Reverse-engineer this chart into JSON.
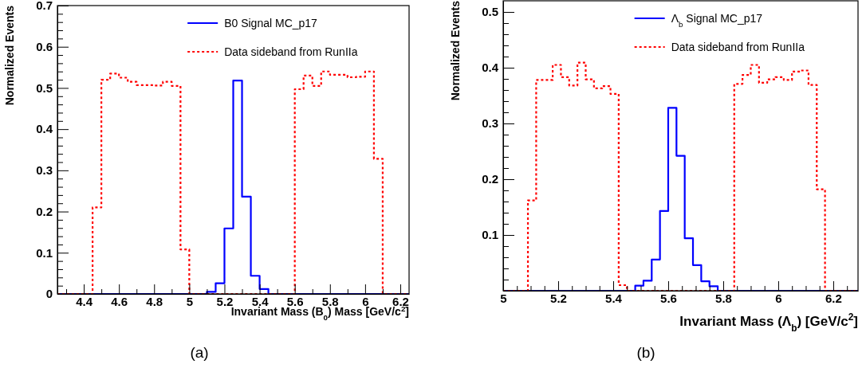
{
  "chart_data": [
    {
      "type": "histogram",
      "xlabel": "Invariant Mass (B$_{0}$) Mass [GeV/c$^{2}$]",
      "ylabel": "Normalized Events",
      "legend": "top right",
      "annotations": [
        "(a)"
      ],
      "bins": [
        4.25,
        4.3,
        4.35,
        4.4,
        4.45,
        4.5,
        4.55,
        4.6,
        4.65,
        4.7,
        4.75,
        4.8,
        4.85,
        4.9,
        4.95,
        5.0,
        5.05,
        5.1,
        5.15,
        5.2,
        5.25,
        5.3,
        5.35,
        5.4,
        5.45,
        5.5,
        5.55,
        5.6,
        5.65,
        5.7,
        5.75,
        5.8,
        5.85,
        5.9,
        5.95,
        6.0,
        6.05,
        6.1,
        6.15,
        6.2,
        6.25
      ],
      "xlim": [
        4.25,
        6.25
      ],
      "ylim": [
        0,
        0.7
      ],
      "xticks": [
        {
          "value": 4.3,
          "label": null
        },
        4.4,
        {
          "value": 4.5,
          "label": null
        },
        4.6,
        {
          "value": 4.7,
          "label": null
        },
        4.8,
        {
          "value": 4.9,
          "label": null
        },
        5,
        {
          "value": 5.1,
          "label": null
        },
        5.2,
        {
          "value": 5.3,
          "label": null
        },
        5.4,
        {
          "value": 5.5,
          "label": null
        },
        5.6,
        {
          "value": 5.7,
          "label": null
        },
        5.8,
        {
          "value": 5.9,
          "label": null
        },
        6,
        {
          "value": 6.1,
          "label": null
        },
        6.2
      ],
      "yticks": [
        0,
        {
          "value": 0.02,
          "label": null
        },
        {
          "value": 0.04,
          "label": null
        },
        {
          "value": 0.06,
          "label": null
        },
        {
          "value": 0.08,
          "label": null
        },
        0.1,
        {
          "value": 0.12,
          "label": null
        },
        {
          "value": 0.14,
          "label": null
        },
        {
          "value": 0.16,
          "label": null
        },
        {
          "value": 0.18,
          "label": null
        },
        0.2,
        {
          "value": 0.22,
          "label": null
        },
        {
          "value": 0.24,
          "label": null
        },
        {
          "value": 0.26,
          "label": null
        },
        {
          "value": 0.28,
          "label": null
        },
        0.3,
        {
          "value": 0.32,
          "label": null
        },
        {
          "value": 0.34,
          "label": null
        },
        {
          "value": 0.36,
          "label": null
        },
        {
          "value": 0.38,
          "label": null
        },
        0.4,
        {
          "value": 0.42,
          "label": null
        },
        {
          "value": 0.44,
          "label": null
        },
        {
          "value": 0.46,
          "label": null
        },
        {
          "value": 0.48,
          "label": null
        },
        0.5,
        {
          "value": 0.52,
          "label": null
        },
        {
          "value": 0.54,
          "label": null
        },
        {
          "value": 0.56,
          "label": null
        },
        {
          "value": 0.58,
          "label": null
        },
        0.6,
        {
          "value": 0.62,
          "label": null
        },
        {
          "value": 0.64,
          "label": null
        },
        {
          "value": 0.66,
          "label": null
        },
        {
          "value": 0.68,
          "label": null
        },
        0.7
      ],
      "series": [
        {
          "name": "B0 Signal MC_p17",
          "color": "#0000ff",
          "line_style": "solid",
          "values": [
            0,
            0,
            0,
            0,
            0,
            0,
            0,
            0,
            0,
            0,
            0,
            0,
            0,
            0,
            0,
            0,
            0,
            0.005,
            0.026,
            0.159,
            0.518,
            0.236,
            0.044,
            0.012,
            0,
            0,
            0,
            0,
            0,
            0,
            0,
            0,
            0,
            0,
            0,
            0,
            0,
            0,
            0,
            0
          ]
        },
        {
          "name": "Data sideband from RunIIa",
          "color": "#ff0000",
          "line_style": "dotted",
          "values": [
            0,
            0,
            0,
            0,
            0.21,
            0.52,
            0.535,
            0.525,
            0.515,
            0.507,
            0.507,
            0.506,
            0.515,
            0.505,
            0.108,
            0,
            0,
            0,
            0,
            0,
            0,
            0,
            0,
            0,
            0,
            0,
            0,
            0.497,
            0.53,
            0.505,
            0.54,
            0.532,
            0.532,
            0.526,
            0.527,
            0.54,
            0.328,
            0,
            0,
            0
          ]
        }
      ]
    },
    {
      "type": "histogram",
      "xlabel": "Invariant Mass (Λ$_{b}$) [GeV/c$^{2}$]",
      "ylabel": "Normalized Events",
      "legend": "top right",
      "annotations": [
        "(b)"
      ],
      "bins": [
        5.0,
        5.03,
        5.06,
        5.09,
        5.12,
        5.15,
        5.18,
        5.21,
        5.24,
        5.27,
        5.3,
        5.33,
        5.36,
        5.39,
        5.42,
        5.45,
        5.48,
        5.51,
        5.54,
        5.57,
        5.6,
        5.63,
        5.66,
        5.69,
        5.72,
        5.75,
        5.78,
        5.81,
        5.84,
        5.87,
        5.9,
        5.93,
        5.96,
        5.99,
        6.02,
        6.05,
        6.08,
        6.11,
        6.14,
        6.17,
        6.2,
        6.23,
        6.26,
        6.29
      ],
      "xlim": [
        5.0,
        6.29
      ],
      "ylim": [
        0,
        0.52
      ],
      "xticks": [
        5,
        {
          "value": 5.05,
          "label": null
        },
        {
          "value": 5.1,
          "label": null
        },
        {
          "value": 5.15,
          "label": null
        },
        5.2,
        {
          "value": 5.25,
          "label": null
        },
        {
          "value": 5.3,
          "label": null
        },
        {
          "value": 5.35,
          "label": null
        },
        5.4,
        {
          "value": 5.45,
          "label": null
        },
        {
          "value": 5.5,
          "label": null
        },
        {
          "value": 5.55,
          "label": null
        },
        5.6,
        {
          "value": 5.65,
          "label": null
        },
        {
          "value": 5.7,
          "label": null
        },
        {
          "value": 5.75,
          "label": null
        },
        5.8,
        {
          "value": 5.85,
          "label": null
        },
        {
          "value": 5.9,
          "label": null
        },
        {
          "value": 5.95,
          "label": null
        },
        6,
        {
          "value": 6.05,
          "label": null
        },
        {
          "value": 6.1,
          "label": null
        },
        {
          "value": 6.15,
          "label": null
        },
        6.2,
        {
          "value": 6.25,
          "label": null
        }
      ],
      "yticks": [
        {
          "value": 0.02,
          "label": null
        },
        {
          "value": 0.04,
          "label": null
        },
        {
          "value": 0.06,
          "label": null
        },
        {
          "value": 0.08,
          "label": null
        },
        0.1,
        {
          "value": 0.12,
          "label": null
        },
        {
          "value": 0.14,
          "label": null
        },
        {
          "value": 0.16,
          "label": null
        },
        {
          "value": 0.18,
          "label": null
        },
        0.2,
        {
          "value": 0.22,
          "label": null
        },
        {
          "value": 0.24,
          "label": null
        },
        {
          "value": 0.26,
          "label": null
        },
        {
          "value": 0.28,
          "label": null
        },
        0.3,
        {
          "value": 0.32,
          "label": null
        },
        {
          "value": 0.34,
          "label": null
        },
        {
          "value": 0.36,
          "label": null
        },
        {
          "value": 0.38,
          "label": null
        },
        0.4,
        {
          "value": 0.42,
          "label": null
        },
        {
          "value": 0.44,
          "label": null
        },
        {
          "value": 0.46,
          "label": null
        },
        {
          "value": 0.48,
          "label": null
        },
        0.5
      ],
      "series": [
        {
          "name": "Λ$_{b}$ Signal MC_p17",
          "color": "#0000ff",
          "line_style": "solid",
          "values": [
            0,
            0,
            0,
            0,
            0,
            0,
            0,
            0,
            0,
            0,
            0,
            0,
            0,
            0,
            0,
            0,
            0.009,
            0.018,
            0.056,
            0.143,
            0.328,
            0.242,
            0.094,
            0.046,
            0.017,
            0.008,
            0,
            0,
            0,
            0,
            0,
            0,
            0,
            0,
            0,
            0,
            0,
            0,
            0,
            0,
            0,
            0,
            0
          ]
        },
        {
          "name": "Data sideband from RunIIa",
          "color": "#ff0000",
          "line_style": "dotted",
          "values": [
            0,
            0,
            0,
            0.162,
            0.378,
            0.378,
            0.405,
            0.383,
            0.368,
            0.409,
            0.379,
            0.363,
            0.367,
            0.353,
            0.01,
            0,
            0,
            0,
            0,
            0,
            0,
            0,
            0,
            0,
            0,
            0,
            0,
            0,
            0.371,
            0.387,
            0.405,
            0.373,
            0.379,
            0.383,
            0.378,
            0.393,
            0.395,
            0.369,
            0.182,
            0,
            0,
            0,
            0
          ]
        }
      ]
    }
  ]
}
